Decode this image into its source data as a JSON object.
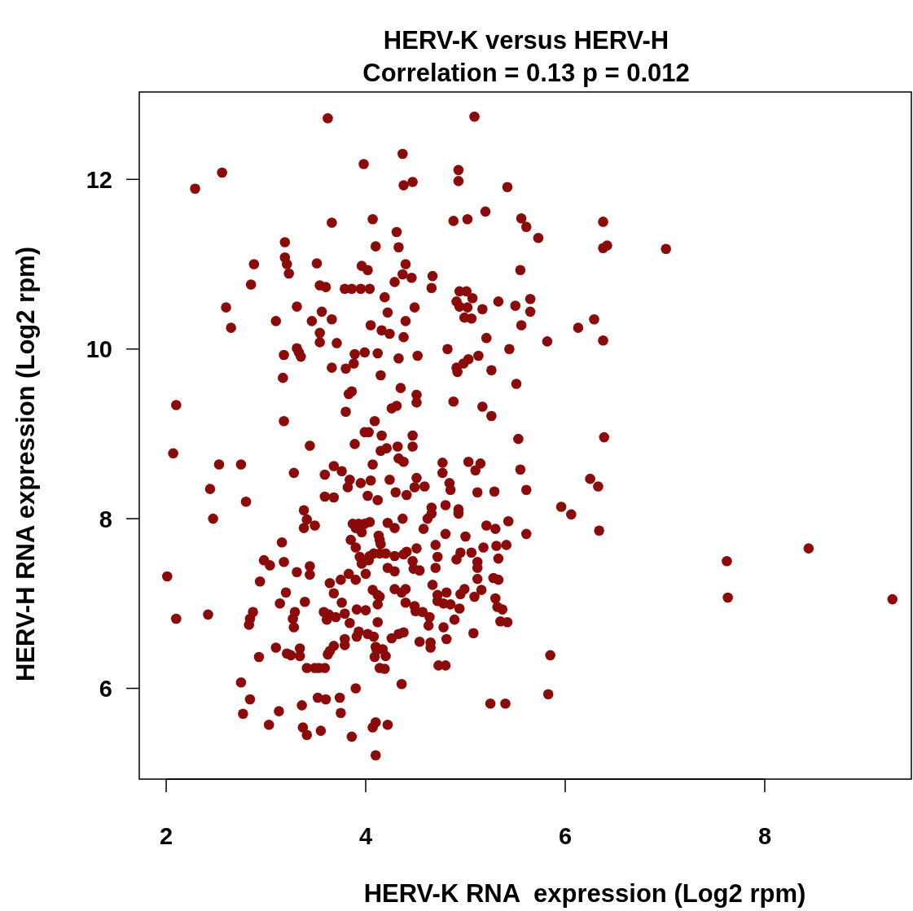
{
  "chart_data": {
    "type": "scatter",
    "title": "HERV-K versus HERV-H",
    "subtitle": "Correlation = 0.13 p = 0.012",
    "xlabel": "HERV-K RNA  expression (Log2 rpm)",
    "ylabel": "HERV-H RNA expression (Log2 rpm)",
    "xlim": [
      1.73,
      9.47
    ],
    "ylim": [
      4.93,
      13.03
    ],
    "xticks": [
      2,
      4,
      6,
      8
    ],
    "yticks": [
      6,
      8,
      10,
      12
    ],
    "marker": "circle",
    "color": "#8b0a0a",
    "x": [
      3.62,
      5.09,
      2.29,
      2.56,
      3.98,
      4.37,
      4.38,
      4.47,
      4.93,
      4.93,
      5.42,
      5.2,
      4.07,
      3.66,
      4.88,
      5.02,
      5.56,
      5.61,
      6.38,
      5.73,
      6.38,
      6.42,
      7.01,
      3.19,
      4.31,
      4.33,
      4.1,
      3.19,
      3.21,
      2.88,
      3.23,
      3.51,
      3.96,
      4.02,
      4.4,
      4.37,
      4.46,
      4.67,
      5.55,
      2.85,
      3.54,
      3.6,
      3.79,
      3.86,
      3.95,
      4.04,
      4.29,
      4.66,
      2.6,
      2.65,
      3.1,
      3.31,
      3.56,
      3.46,
      3.66,
      4.19,
      4.22,
      4.05,
      4.16,
      4.24,
      4.4,
      4.49,
      4.38,
      4.94,
      5.01,
      5.07,
      4.91,
      4.94,
      5.02,
      5.17,
      5.33,
      5.65,
      5.65,
      4.99,
      5.06,
      5.5,
      5.56,
      5.21,
      6.38,
      5.82,
      6.13,
      6.29,
      3.54,
      3.54,
      3.71,
      3.31,
      3.33,
      3.18,
      3.35,
      3.89,
      3.99,
      4.12,
      4.52,
      4.82,
      5.44,
      5.13,
      5.03,
      4.98,
      4.91,
      4.92,
      5.26,
      3.66,
      3.8,
      3.88,
      4.33,
      4.15,
      4.35,
      3.17,
      3.86,
      3.83,
      4.51,
      4.51,
      4.26,
      4.31,
      4.88,
      5.17,
      5.26,
      5.51,
      2.1,
      3.8,
      3.99,
      4.03,
      4.09,
      3.18,
      4.16,
      4.47,
      3.89,
      3.44,
      4.47,
      4.32,
      4.15,
      4.21,
      4.33,
      4.38,
      4.07,
      5.53,
      6.39,
      2.07,
      2.53,
      2.75,
      3.68,
      3.76,
      3.59,
      3.28,
      3.84,
      3.82,
      3.95,
      4.05,
      4.24,
      4.51,
      4.77,
      4.77,
      5.03,
      5.1,
      5.15,
      5.55,
      4.84,
      4.85,
      4.59,
      5.29,
      5.61,
      5.12,
      2.44,
      2.8,
      6.33,
      6.25,
      3.59,
      3.68,
      4.02,
      4.12,
      4.41,
      4.49,
      4.3,
      4.66,
      4.62,
      4.37,
      4.66,
      4.8,
      4.93,
      4.93,
      5.96,
      6.06,
      2.47,
      3.38,
      3.41,
      3.49,
      3.38,
      3.87,
      3.93,
      3.99,
      4.04,
      4.22,
      3.9,
      4.29,
      4.58,
      5.0,
      4.8,
      5.21,
      5.3,
      5.43,
      5.61,
      6.34,
      3.96,
      3.85,
      4.13,
      4.14,
      4.15,
      3.16,
      3.9,
      4.51,
      4.41,
      4.7,
      5.31,
      5.41,
      5.06,
      5.18,
      2.98,
      3.04,
      3.18,
      3.44,
      3.94,
      4.04,
      4.08,
      4.14,
      4.2,
      3.96,
      4.03,
      4.29,
      4.38,
      4.72,
      4.91,
      5.33,
      5.12,
      5.12,
      4.95,
      4.47,
      4.48,
      4.54,
      4.7,
      4.22,
      4.29,
      7.62,
      8.44,
      2.01,
      2.94,
      3.31,
      3.44,
      3.83,
      4.0,
      3.9,
      3.64,
      3.75,
      5.28,
      5.33,
      5.12,
      4.67,
      4.29,
      4.36,
      4.4,
      4.07,
      4.99,
      5.16,
      4.81,
      4.72,
      4.95,
      4.12,
      4.14,
      3.68,
      3.2,
      4.72,
      4.78,
      5.09,
      5.3,
      5.37,
      5.32,
      4.85,
      4.4,
      4.49,
      4.5,
      2.1,
      2.42,
      2.87,
      2.84,
      2.83,
      3.14,
      3.39,
      3.29,
      3.27,
      3.28,
      3.76,
      3.58,
      3.63,
      3.79,
      3.91,
      3.7,
      3.61,
      3.84,
      4.0,
      4.12,
      4.57,
      4.64,
      4.89,
      4.94,
      4.63,
      4.12,
      5.35,
      5.42,
      7.63,
      9.28,
      5.08,
      4.78,
      4.81,
      4.54,
      4.65,
      4.65,
      3.93,
      4.02,
      3.91,
      4.08,
      4.33,
      4.38,
      4.26,
      3.79,
      3.79,
      3.68,
      3.62,
      3.64,
      4.1,
      4.11,
      4.17,
      4.2,
      4.09,
      3.34,
      3.25,
      3.21,
      3.1,
      3.34,
      2.93,
      3.41,
      3.49,
      3.53,
      3.59,
      4.14,
      4.19,
      4.73,
      4.8,
      5.85,
      2.75,
      4.36,
      3.9,
      5.25,
      5.4,
      5.83,
      2.84,
      2.77,
      3.36,
      3.52,
      3.6,
      3.74,
      3.75,
      3.03,
      3.13,
      3.37,
      3.41,
      3.55,
      3.86,
      4.1,
      4.07,
      4.22,
      4.1
    ],
    "values": [
      12.72,
      12.74,
      11.89,
      12.08,
      12.18,
      12.3,
      11.93,
      11.97,
      12.11,
      11.98,
      11.91,
      11.62,
      11.53,
      11.49,
      11.51,
      11.53,
      11.54,
      11.44,
      11.5,
      11.31,
      11.19,
      11.22,
      11.18,
      11.26,
      11.38,
      11.2,
      11.21,
      11.08,
      11.0,
      11.0,
      10.89,
      11.01,
      10.98,
      10.93,
      11.0,
      10.88,
      10.84,
      10.86,
      10.93,
      10.76,
      10.75,
      10.73,
      10.71,
      10.71,
      10.71,
      10.71,
      10.79,
      10.72,
      10.49,
      10.25,
      10.33,
      10.5,
      10.44,
      10.33,
      10.35,
      10.61,
      10.43,
      10.28,
      10.22,
      10.18,
      10.33,
      10.49,
      10.14,
      10.68,
      10.68,
      10.6,
      10.56,
      10.5,
      10.49,
      10.47,
      10.56,
      10.59,
      10.44,
      10.37,
      10.36,
      10.51,
      10.28,
      10.13,
      10.1,
      10.09,
      10.25,
      10.35,
      10.19,
      10.08,
      10.07,
      10.01,
      9.96,
      9.93,
      9.91,
      9.94,
      9.96,
      9.95,
      9.92,
      10.0,
      10.0,
      9.92,
      9.88,
      9.83,
      9.78,
      9.73,
      9.75,
      9.78,
      9.77,
      9.83,
      9.89,
      9.69,
      9.54,
      9.66,
      9.5,
      9.47,
      9.46,
      9.37,
      9.3,
      9.33,
      9.38,
      9.32,
      9.21,
      9.59,
      9.34,
      9.26,
      9.02,
      9.02,
      9.15,
      9.15,
      8.98,
      8.98,
      8.88,
      8.86,
      8.85,
      8.85,
      8.8,
      8.83,
      8.71,
      8.67,
      8.64,
      8.94,
      8.96,
      8.77,
      8.64,
      8.64,
      8.62,
      8.56,
      8.52,
      8.54,
      8.46,
      8.37,
      8.42,
      8.45,
      8.46,
      8.48,
      8.66,
      8.54,
      8.67,
      8.57,
      8.65,
      8.58,
      8.42,
      8.34,
      8.38,
      8.32,
      8.34,
      8.31,
      8.35,
      8.2,
      8.38,
      8.47,
      8.26,
      8.25,
      8.27,
      8.22,
      8.28,
      8.37,
      8.31,
      8.06,
      8.0,
      8.0,
      8.13,
      8.16,
      8.11,
      8.06,
      8.14,
      8.05,
      8.0,
      8.1,
      7.99,
      7.92,
      7.89,
      7.94,
      7.94,
      7.94,
      7.96,
      7.95,
      7.89,
      7.89,
      7.88,
      7.79,
      7.82,
      7.92,
      7.88,
      7.97,
      7.82,
      7.86,
      7.84,
      7.75,
      7.8,
      7.75,
      7.7,
      7.72,
      7.66,
      7.65,
      7.61,
      7.69,
      7.68,
      7.69,
      7.6,
      7.66,
      7.51,
      7.45,
      7.49,
      7.44,
      7.55,
      7.56,
      7.59,
      7.59,
      7.59,
      7.47,
      7.51,
      7.56,
      7.58,
      7.55,
      7.52,
      7.53,
      7.49,
      7.42,
      7.6,
      7.5,
      7.41,
      7.39,
      7.42,
      7.42,
      7.38,
      7.5,
      7.65,
      7.32,
      7.26,
      7.37,
      7.34,
      7.35,
      7.35,
      7.28,
      7.24,
      7.28,
      7.3,
      7.28,
      7.29,
      7.22,
      7.17,
      7.13,
      7.17,
      7.16,
      7.17,
      7.16,
      7.13,
      7.1,
      7.11,
      7.1,
      7.08,
      7.12,
      7.13,
      7.03,
      7.0,
      7.08,
      7.06,
      6.93,
      6.96,
      6.99,
      7.01,
      6.97,
      6.91,
      6.82,
      6.87,
      6.9,
      6.82,
      6.75,
      7.0,
      7.02,
      6.9,
      6.82,
      6.72,
      7.01,
      6.9,
      6.87,
      6.88,
      6.93,
      6.84,
      6.81,
      6.77,
      6.92,
      6.99,
      6.9,
      6.84,
      6.81,
      6.94,
      6.74,
      6.78,
      6.79,
      6.78,
      7.07,
      7.05,
      6.65,
      6.72,
      6.58,
      6.55,
      6.54,
      6.48,
      6.67,
      6.64,
      6.61,
      6.61,
      6.64,
      6.66,
      6.59,
      6.58,
      6.51,
      6.5,
      6.4,
      6.44,
      6.49,
      6.45,
      6.46,
      6.38,
      6.37,
      6.47,
      6.39,
      6.41,
      6.48,
      6.38,
      6.37,
      6.24,
      6.24,
      6.24,
      6.24,
      6.24,
      6.23,
      6.27,
      6.27,
      6.39,
      6.07,
      6.05,
      6.0,
      5.82,
      5.82,
      5.93,
      5.87,
      5.7,
      5.8,
      5.89,
      5.87,
      5.89,
      5.71,
      5.57,
      5.73,
      5.54,
      5.45,
      5.5,
      5.43,
      5.6,
      5.54,
      5.57,
      5.21
    ]
  }
}
